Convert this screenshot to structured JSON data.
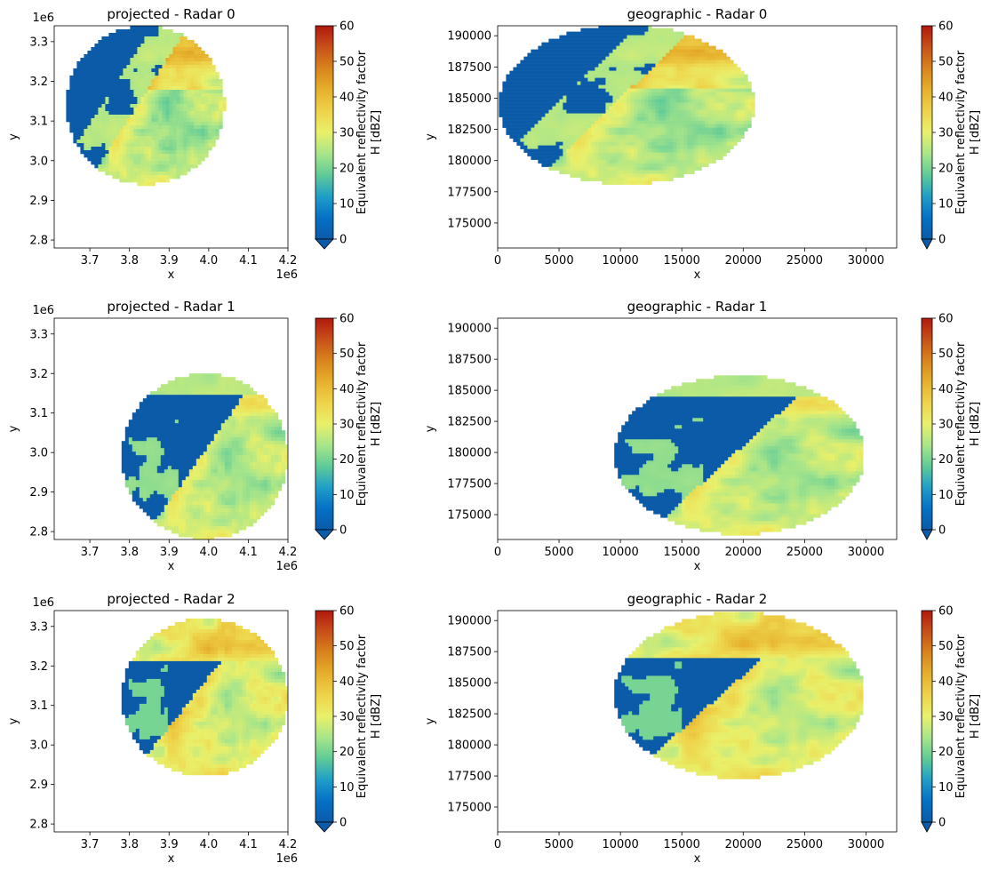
{
  "colors": {
    "colormap": [
      "#0b5ba8",
      "#0570c5",
      "#1f9ec8",
      "#5fcb97",
      "#a8e58a",
      "#e9f06a",
      "#eed34a",
      "#e6b02c",
      "#d8841c",
      "#c8501a",
      "#b0180e"
    ],
    "background": "#ffffff",
    "axis": "#000000"
  },
  "chart_data": [
    {
      "type": "heatmap",
      "title": "projected - Radar 0",
      "xlabel": "x",
      "ylabel": "y",
      "x_offset_label": "1e6",
      "y_offset_label": "1e6",
      "xlim": [
        3.61,
        4.2
      ],
      "ylim": [
        2.78,
        3.34
      ],
      "xticks": [
        3.7,
        3.8,
        3.9,
        4.0,
        4.1,
        4.2
      ],
      "xtick_labels": [
        "3.7",
        "3.8",
        "3.9",
        "4.0",
        "4.1",
        "4.2"
      ],
      "yticks": [
        2.8,
        2.9,
        3.0,
        3.1,
        3.2,
        3.3
      ],
      "ytick_labels": [
        "2.8",
        "2.9",
        "3.0",
        "3.1",
        "3.2",
        "3.3"
      ],
      "colorbar": {
        "label": "Equivalent reflectivity factor\nH [dBZ]",
        "range": [
          0,
          60
        ],
        "ticks": [
          "0",
          "10",
          "20",
          "30",
          "40",
          "50",
          "60"
        ],
        "extend": "min"
      },
      "echo_region": {
        "shape": "circle",
        "center": [
          3.84,
          3.14
        ],
        "radius": [
          0.2,
          0.2
        ],
        "pattern": "radar0"
      }
    },
    {
      "type": "heatmap",
      "title": "geographic - Radar 0",
      "xlabel": "x",
      "ylabel": "y",
      "xlim": [
        0,
        32500
      ],
      "ylim": [
        173000,
        190800
      ],
      "xticks": [
        0,
        5000,
        10000,
        15000,
        20000,
        25000,
        30000
      ],
      "xtick_labels": [
        "0",
        "5000",
        "10000",
        "15000",
        "20000",
        "25000",
        "30000"
      ],
      "yticks": [
        175000,
        177500,
        180000,
        182500,
        185000,
        187500,
        190000
      ],
      "ytick_labels": [
        "175000",
        "177500",
        "180000",
        "182500",
        "185000",
        "187500",
        "190000"
      ],
      "colorbar": {
        "label": "Equivalent reflectivity factor\nH [dBZ]",
        "range": [
          0,
          60
        ],
        "ticks": [
          "0",
          "10",
          "20",
          "30",
          "40",
          "50",
          "60"
        ],
        "extend": "min"
      },
      "echo_region": {
        "shape": "ellipse",
        "center": [
          10500,
          184500
        ],
        "radius": [
          10400,
          6400
        ],
        "pattern": "radar0"
      }
    },
    {
      "type": "heatmap",
      "title": "projected - Radar 1",
      "xlabel": "x",
      "ylabel": "y",
      "x_offset_label": "1e6",
      "y_offset_label": "1e6",
      "xlim": [
        3.61,
        4.2
      ],
      "ylim": [
        2.78,
        3.34
      ],
      "xticks": [
        3.7,
        3.8,
        3.9,
        4.0,
        4.1,
        4.2
      ],
      "xtick_labels": [
        "3.7",
        "3.8",
        "3.9",
        "4.0",
        "4.1",
        "4.2"
      ],
      "yticks": [
        2.8,
        2.9,
        3.0,
        3.1,
        3.2,
        3.3
      ],
      "ytick_labels": [
        "2.8",
        "2.9",
        "3.0",
        "3.1",
        "3.2",
        "3.3"
      ],
      "colorbar": {
        "label": "Equivalent reflectivity factor\nH [dBZ]",
        "range": [
          0,
          60
        ],
        "ticks": [
          "0",
          "10",
          "20",
          "30",
          "40",
          "50",
          "60"
        ],
        "extend": "min"
      },
      "echo_region": {
        "shape": "circle",
        "center": [
          3.99,
          2.99
        ],
        "radius": [
          0.21,
          0.21
        ],
        "pattern": "radar1"
      }
    },
    {
      "type": "heatmap",
      "title": "geographic - Radar 1",
      "xlabel": "x",
      "ylabel": "y",
      "xlim": [
        0,
        32500
      ],
      "ylim": [
        173000,
        190800
      ],
      "xticks": [
        0,
        5000,
        10000,
        15000,
        20000,
        25000,
        30000
      ],
      "xtick_labels": [
        "0",
        "5000",
        "10000",
        "15000",
        "20000",
        "25000",
        "30000"
      ],
      "yticks": [
        175000,
        177500,
        180000,
        182500,
        185000,
        187500,
        190000
      ],
      "ytick_labels": [
        "175000",
        "177500",
        "180000",
        "182500",
        "185000",
        "187500",
        "190000"
      ],
      "colorbar": {
        "label": "Equivalent reflectivity factor\nH [dBZ]",
        "range": [
          0,
          60
        ],
        "ticks": [
          "0",
          "10",
          "20",
          "30",
          "40",
          "50",
          "60"
        ],
        "extend": "min"
      },
      "echo_region": {
        "shape": "ellipse",
        "center": [
          19700,
          179800
        ],
        "radius": [
          10200,
          6400
        ],
        "pattern": "radar1"
      }
    },
    {
      "type": "heatmap",
      "title": "projected - Radar 2",
      "xlabel": "x",
      "ylabel": "y",
      "x_offset_label": "1e6",
      "y_offset_label": "1e6",
      "xlim": [
        3.61,
        4.2
      ],
      "ylim": [
        2.78,
        3.34
      ],
      "xticks": [
        3.7,
        3.8,
        3.9,
        4.0,
        4.1,
        4.2
      ],
      "xtick_labels": [
        "3.7",
        "3.8",
        "3.9",
        "4.0",
        "4.1",
        "4.2"
      ],
      "yticks": [
        2.8,
        2.9,
        3.0,
        3.1,
        3.2,
        3.3
      ],
      "ytick_labels": [
        "2.8",
        "2.9",
        "3.0",
        "3.1",
        "3.2",
        "3.3"
      ],
      "colorbar": {
        "label": "Equivalent reflectivity factor\nH [dBZ]",
        "range": [
          0,
          60
        ],
        "ticks": [
          "0",
          "10",
          "20",
          "30",
          "40",
          "50",
          "60"
        ],
        "extend": "min"
      },
      "echo_region": {
        "shape": "circle",
        "center": [
          3.99,
          3.12
        ],
        "radius": [
          0.21,
          0.2
        ],
        "pattern": "radar2"
      }
    },
    {
      "type": "heatmap",
      "title": "geographic - Radar 2",
      "xlabel": "x",
      "ylabel": "y",
      "xlim": [
        0,
        32500
      ],
      "ylim": [
        173000,
        190800
      ],
      "xticks": [
        0,
        5000,
        10000,
        15000,
        20000,
        25000,
        30000
      ],
      "xtick_labels": [
        "0",
        "5000",
        "10000",
        "15000",
        "20000",
        "25000",
        "30000"
      ],
      "yticks": [
        175000,
        177500,
        180000,
        182500,
        185000,
        187500,
        190000
      ],
      "ytick_labels": [
        "175000",
        "177500",
        "180000",
        "182500",
        "185000",
        "187500",
        "190000"
      ],
      "colorbar": {
        "label": "Equivalent reflectivity factor\nH [dBZ]",
        "range": [
          0,
          60
        ],
        "ticks": [
          "0",
          "10",
          "20",
          "30",
          "40",
          "50",
          "60"
        ],
        "extend": "min"
      },
      "echo_region": {
        "shape": "ellipse",
        "center": [
          19700,
          184000
        ],
        "radius": [
          10200,
          6700
        ],
        "pattern": "radar2"
      }
    }
  ]
}
